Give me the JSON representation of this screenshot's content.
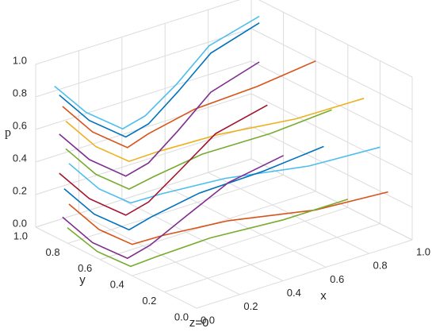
{
  "chart_data": {
    "type": "line3d",
    "xlabel": "x",
    "ylabel": "y",
    "zlabel": "p",
    "footer": "z=0",
    "xlim": [
      0,
      1
    ],
    "ylim": [
      0,
      1
    ],
    "zlim": [
      0,
      1
    ],
    "xticks": [
      {
        "value": 0,
        "label": "0.0"
      },
      {
        "value": 0.2,
        "label": "0.2"
      },
      {
        "value": 0.4,
        "label": "0.4"
      },
      {
        "value": 0.6,
        "label": "0.6"
      },
      {
        "value": 0.8,
        "label": "0.8"
      },
      {
        "value": 1,
        "label": "1.0"
      }
    ],
    "yticks": [
      {
        "value": 0,
        "label": "0.0"
      },
      {
        "value": 0.2,
        "label": "0.2"
      },
      {
        "value": 0.4,
        "label": "0.4"
      },
      {
        "value": 0.6,
        "label": "0.6"
      },
      {
        "value": 0.8,
        "label": "0.8"
      },
      {
        "value": 1,
        "label": "1.0"
      }
    ],
    "zticks": [
      {
        "value": 0,
        "label": "0.0"
      },
      {
        "value": 0.2,
        "label": "0.2"
      },
      {
        "value": 0.4,
        "label": "0.4"
      },
      {
        "value": 0.6,
        "label": "0.6"
      },
      {
        "value": 0.8,
        "label": "0.8"
      },
      {
        "value": 1,
        "label": "1.0"
      }
    ],
    "grid": true,
    "series": [
      {
        "color": "#4dbeee",
        "x": [
          1,
          0.7,
          0.4,
          0.15,
          0.03,
          0.01,
          0.05
        ],
        "y": [
          0.95,
          0.86,
          0.66,
          0.52,
          0.5,
          0.7,
          0.95
        ],
        "z": [
          0.9,
          0.89,
          0.88,
          0.86,
          0.84,
          0.85,
          0.87
        ]
      },
      {
        "color": "#0072bd",
        "x": [
          1,
          0.7,
          0.4,
          0.15,
          0.03,
          0.01,
          0.05
        ],
        "y": [
          0.95,
          0.85,
          0.65,
          0.5,
          0.48,
          0.68,
          0.92
        ],
        "z": [
          0.86,
          0.85,
          0.84,
          0.82,
          0.8,
          0.81,
          0.83
        ]
      },
      {
        "color": "#d95319",
        "x": [
          1,
          0.7,
          0.4,
          0.15,
          0.03,
          0.01,
          0.05
        ],
        "y": [
          0.6,
          0.56,
          0.55,
          0.5,
          0.47,
          0.66,
          0.9
        ],
        "z": [
          0.8,
          0.79,
          0.78,
          0.76,
          0.74,
          0.75,
          0.77
        ]
      },
      {
        "color": "#edb120",
        "x": [
          1,
          0.7,
          0.4,
          0.15,
          0.03,
          0.01,
          0.05
        ],
        "y": [
          0.3,
          0.32,
          0.4,
          0.44,
          0.46,
          0.64,
          0.88
        ],
        "z": [
          0.72,
          0.71,
          0.7,
          0.68,
          0.66,
          0.67,
          0.69
        ]
      },
      {
        "color": "#7e2f8e",
        "x": [
          1,
          0.7,
          0.4,
          0.15,
          0.03,
          0.01,
          0.05
        ],
        "y": [
          0.95,
          0.85,
          0.65,
          0.5,
          0.48,
          0.68,
          0.92
        ],
        "z": [
          0.62,
          0.61,
          0.6,
          0.58,
          0.56,
          0.57,
          0.59
        ]
      },
      {
        "color": "#77ac30",
        "x": [
          1,
          0.7,
          0.4,
          0.15,
          0.03,
          0.01,
          0.05
        ],
        "y": [
          0.5,
          0.48,
          0.5,
          0.47,
          0.46,
          0.64,
          0.88
        ],
        "z": [
          0.55,
          0.54,
          0.53,
          0.51,
          0.49,
          0.5,
          0.52
        ]
      },
      {
        "color": "#4dbeee",
        "x": [
          1,
          0.7,
          0.4,
          0.15,
          0.03,
          0.01,
          0.05
        ],
        "y": [
          0.2,
          0.24,
          0.36,
          0.42,
          0.45,
          0.62,
          0.86
        ],
        "z": [
          0.47,
          0.46,
          0.45,
          0.43,
          0.41,
          0.42,
          0.44
        ]
      },
      {
        "color": "#a2142f",
        "x": [
          1,
          0.7,
          0.4,
          0.15,
          0.03,
          0.01,
          0.05
        ],
        "y": [
          0.9,
          0.82,
          0.64,
          0.5,
          0.48,
          0.68,
          0.92
        ],
        "z": [
          0.38,
          0.37,
          0.36,
          0.34,
          0.32,
          0.33,
          0.35
        ]
      },
      {
        "color": "#0072bd",
        "x": [
          1,
          0.7,
          0.4,
          0.15,
          0.03,
          0.01,
          0.05
        ],
        "y": [
          0.55,
          0.52,
          0.52,
          0.48,
          0.46,
          0.65,
          0.89
        ],
        "z": [
          0.3,
          0.29,
          0.28,
          0.26,
          0.24,
          0.25,
          0.27
        ]
      },
      {
        "color": "#d95319",
        "x": [
          1,
          0.7,
          0.4,
          0.15,
          0.03,
          0.01,
          0.05
        ],
        "y": [
          0.15,
          0.2,
          0.34,
          0.41,
          0.44,
          0.62,
          0.86
        ],
        "z": [
          0.22,
          0.21,
          0.2,
          0.18,
          0.16,
          0.17,
          0.19
        ]
      },
      {
        "color": "#7e2f8e",
        "x": [
          1,
          0.7,
          0.4,
          0.15,
          0.03,
          0.01,
          0.05
        ],
        "y": [
          0.8,
          0.74,
          0.6,
          0.49,
          0.47,
          0.66,
          0.9
        ],
        "z": [
          0.12,
          0.11,
          0.1,
          0.08,
          0.06,
          0.07,
          0.09
        ]
      },
      {
        "color": "#77ac30",
        "x": [
          1,
          0.7,
          0.4,
          0.15,
          0.03,
          0.01,
          0.05
        ],
        "y": [
          0.4,
          0.4,
          0.45,
          0.45,
          0.45,
          0.63,
          0.87
        ],
        "z": [
          0.05,
          0.05,
          0.04,
          0.03,
          0.02,
          0.03,
          0.04
        ]
      }
    ]
  }
}
